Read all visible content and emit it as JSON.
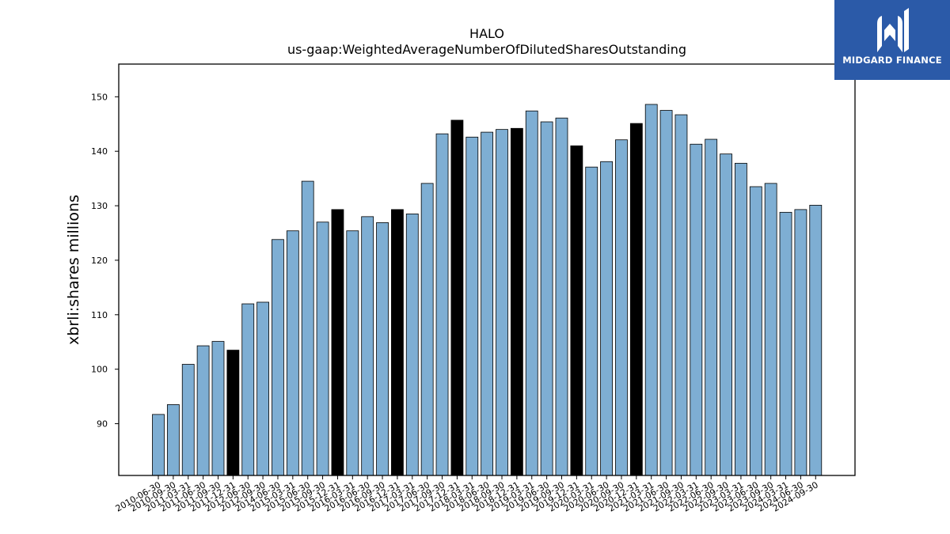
{
  "brand": {
    "name": "MIDGARD FINANCE",
    "logo_icon": "midgard-m-logo-icon",
    "color": "#2b5aa8"
  },
  "chart_data": {
    "type": "bar",
    "title": "HALO",
    "subtitle": "us-gaap:WeightedAverageNumberOfDilutedSharesOutstanding",
    "xlabel": "",
    "ylabel": "xbrli:shares millions",
    "ylim": [
      80.5,
      156
    ],
    "yticks": [
      90,
      100,
      110,
      120,
      130,
      140,
      150
    ],
    "grid": false,
    "bar_color": "#7eaed3",
    "highlight_color": "#000000",
    "categories": [
      "2010-06-30",
      "2010-09-30",
      "2011-03-31",
      "2011-06-30",
      "2011-09-30",
      "2011-12-31",
      "2012-06-30",
      "2012-09-30",
      "2014-06-30",
      "2015-03-31",
      "2015-06-30",
      "2015-09-30",
      "2015-12-31",
      "2016-03-31",
      "2016-06-30",
      "2016-09-30",
      "2016-12-31",
      "2017-03-31",
      "2017-06-30",
      "2017-09-30",
      "2017-12-31",
      "2018-03-31",
      "2018-06-30",
      "2018-09-30",
      "2018-12-31",
      "2019-03-31",
      "2019-06-30",
      "2019-09-30",
      "2019-12-31",
      "2020-03-31",
      "2020-06-30",
      "2020-09-30",
      "2020-12-31",
      "2021-03-31",
      "2021-06-30",
      "2021-09-30",
      "2022-03-31",
      "2022-06-30",
      "2022-09-30",
      "2023-03-31",
      "2023-06-30",
      "2023-09-30",
      "2024-03-31",
      "2024-06-30",
      "2024-09-30"
    ],
    "values": [
      91.7,
      93.5,
      100.9,
      104.3,
      105.1,
      103.5,
      112.0,
      112.3,
      123.8,
      125.4,
      134.5,
      127.0,
      129.3,
      125.4,
      128.0,
      126.9,
      129.3,
      128.5,
      134.1,
      143.2,
      145.7,
      142.6,
      143.5,
      144.0,
      144.2,
      147.4,
      145.4,
      146.1,
      141.0,
      137.1,
      138.1,
      142.1,
      145.1,
      148.6,
      147.5,
      146.7,
      141.3,
      142.2,
      139.5,
      137.8,
      133.5,
      134.1,
      128.8,
      129.3,
      130.1
    ],
    "highlighted": [
      "2011-12-31",
      "2015-12-31",
      "2016-12-31",
      "2017-12-31",
      "2018-12-31",
      "2019-12-31",
      "2020-12-31"
    ]
  }
}
